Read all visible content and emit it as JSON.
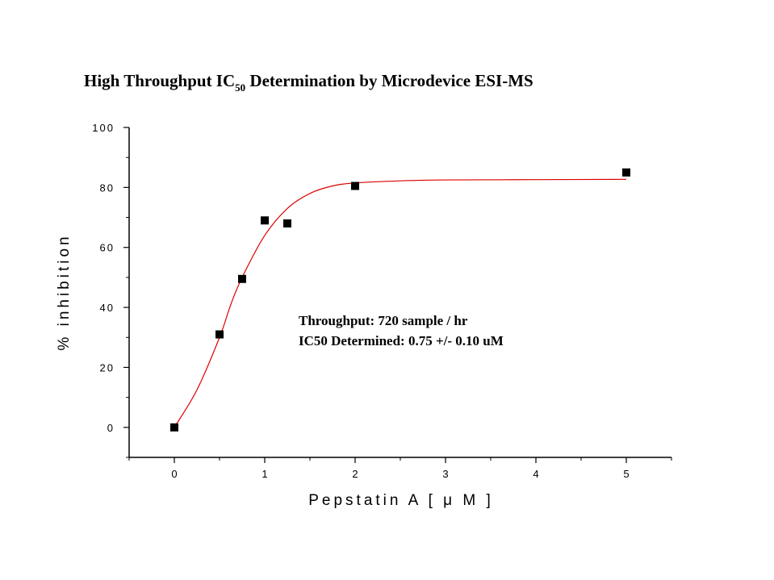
{
  "chart_data": {
    "type": "scatter",
    "title": {
      "main": "High Throughput IC",
      "subscript": "50",
      "rest": " Determination by Microdevice ESI-MS"
    },
    "xlabel": "Pepstatin A [ μ M ]",
    "ylabel": "% inhibition",
    "xlim": [
      -0.5,
      5.5
    ],
    "ylim": [
      -10,
      100
    ],
    "x_ticks": [
      0,
      1,
      2,
      3,
      4,
      5
    ],
    "y_ticks": [
      0,
      20,
      40,
      60,
      80,
      100
    ],
    "grid": false,
    "series": [
      {
        "kind": "points",
        "marker": "square",
        "color": "#000000",
        "x": [
          0,
          0.5,
          0.75,
          1.0,
          1.25,
          2.0,
          5.0
        ],
        "y": [
          0,
          31,
          49.5,
          69,
          68,
          80.5,
          85
        ]
      },
      {
        "kind": "fit",
        "color": "#dd0000",
        "x": [
          0,
          0.25,
          0.5,
          0.625,
          0.75,
          1.0,
          1.25,
          1.5,
          1.75,
          2.0,
          2.5,
          3.0,
          4.0,
          5.0
        ],
        "y": [
          0,
          12.5,
          30,
          41,
          50,
          64,
          73,
          78,
          80.5,
          81.5,
          82.2,
          82.5,
          82.6,
          82.7
        ]
      }
    ],
    "annotations": [
      "Throughput: 720 sample / hr",
      "IC50 Determined: 0.75 +/- 0.10 uM"
    ]
  }
}
